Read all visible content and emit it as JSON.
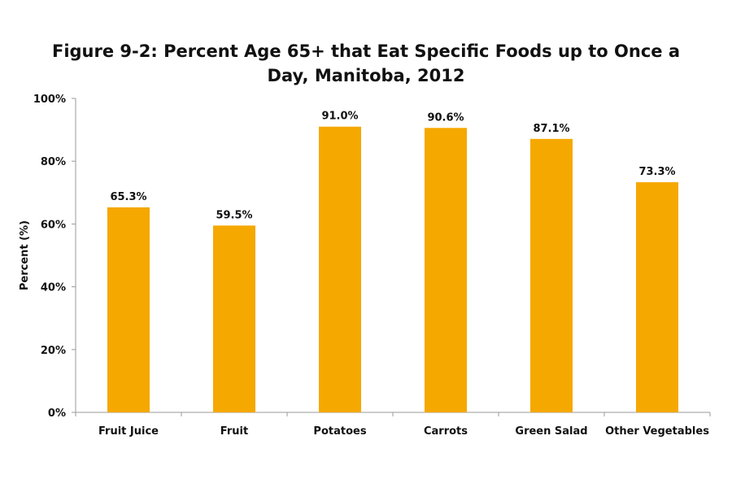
{
  "chart_data": {
    "type": "bar",
    "title_lines": [
      "Figure 9-2: Percent Age 65+ that Eat Specific Foods up to Once a",
      "Day, Manitoba, 2012"
    ],
    "xlabel": "",
    "ylabel": "Percent  (%)",
    "categories": [
      "Fruit Juice",
      "Fruit",
      "Potatoes",
      "Carrots",
      "Green Salad",
      "Other Vegetables"
    ],
    "values": [
      65.3,
      59.5,
      91.0,
      90.6,
      87.1,
      73.3
    ],
    "data_labels": [
      "65.3%",
      "59.5%",
      "91.0%",
      "90.6%",
      "87.1%",
      "73.3%"
    ],
    "ylim": [
      0,
      100
    ],
    "yticks": [
      0,
      20,
      40,
      60,
      80,
      100
    ],
    "ytick_labels": [
      "0%",
      "20%",
      "40%",
      "60%",
      "80%",
      "100%"
    ],
    "grid": false,
    "legend": "none",
    "bar_color": "#F5A800"
  }
}
